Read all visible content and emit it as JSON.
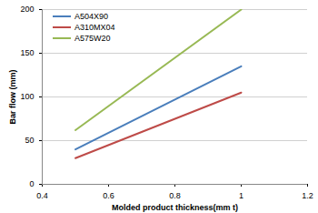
{
  "chart_data": {
    "type": "line",
    "x_label": "Molded product thickness(mm t)",
    "y_label": "Bar flow (mm)",
    "x": [
      0.5,
      1
    ],
    "series": [
      {
        "name": "A504X90",
        "color": "#4a7ebb",
        "values": [
          40,
          135
        ]
      },
      {
        "name": "A310MX04",
        "color": "#be4b48",
        "values": [
          30,
          105
        ]
      },
      {
        "name": "A575W20",
        "color": "#98b954",
        "values": [
          62,
          200
        ]
      }
    ],
    "xlim": [
      0.4,
      1.2
    ],
    "xticks": [
      0.4,
      0.6,
      0.8,
      1,
      1.2
    ],
    "ylim": [
      0,
      200
    ],
    "yticks": [
      0,
      50,
      100,
      150,
      200
    ],
    "grid": true,
    "legend": "top-left"
  }
}
